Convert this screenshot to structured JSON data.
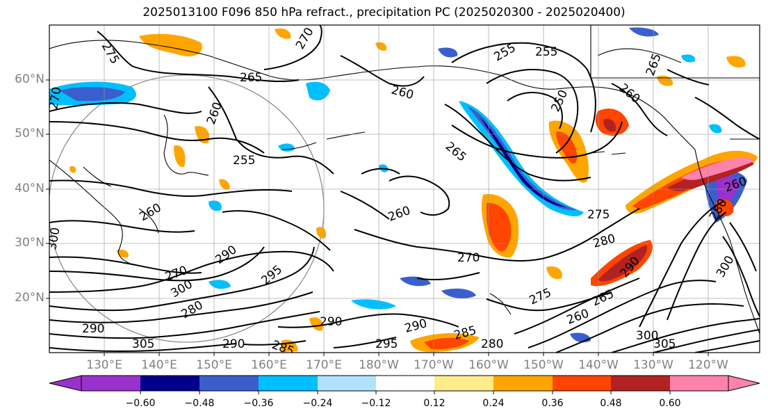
{
  "title": "2025013100 F096 850 hPa refract., precipitation PC (2025020300 - 2025020400)",
  "lat_labels": [
    "60°N",
    "50°N",
    "40°N",
    "30°N",
    "20°N"
  ],
  "lon_labels": [
    "130°E",
    "140°E",
    "150°E",
    "160°E",
    "170°E",
    "180°W",
    "170°W",
    "160°W",
    "150°W",
    "140°W",
    "130°W",
    "120°W"
  ],
  "colorbar": {
    "ticks": [
      "−0.60",
      "−0.48",
      "−0.36",
      "−0.24",
      "−0.12",
      "0.12",
      "0.24",
      "0.36",
      "0.48",
      "0.60"
    ],
    "colors": [
      "#9932cc",
      "#00008b",
      "#3a5fcd",
      "#00bfff",
      "#b0e2ff",
      "#ffffff",
      "#ffec8b",
      "#ffa500",
      "#ff4500",
      "#b22222",
      "#ff82ab"
    ]
  },
  "contour_labels": [
    {
      "text": "275"
    },
    {
      "text": "270"
    },
    {
      "text": "265"
    },
    {
      "text": "260"
    },
    {
      "text": "255"
    },
    {
      "text": "250"
    },
    {
      "text": "255"
    },
    {
      "text": "260"
    },
    {
      "text": "265"
    },
    {
      "text": "270"
    },
    {
      "text": "260"
    },
    {
      "text": "255"
    },
    {
      "text": "260"
    },
    {
      "text": "265"
    },
    {
      "text": "275"
    },
    {
      "text": "280"
    },
    {
      "text": "270"
    },
    {
      "text": "290"
    },
    {
      "text": "295"
    },
    {
      "text": "290"
    },
    {
      "text": "290"
    },
    {
      "text": "285"
    },
    {
      "text": "280"
    },
    {
      "text": "295"
    },
    {
      "text": "300"
    },
    {
      "text": "305"
    },
    {
      "text": "275"
    },
    {
      "text": "265"
    },
    {
      "text": "260"
    },
    {
      "text": "300"
    },
    {
      "text": "290"
    },
    {
      "text": "290"
    },
    {
      "text": "305"
    },
    {
      "text": "300"
    },
    {
      "text": "280"
    },
    {
      "text": "270"
    },
    {
      "text": "300"
    },
    {
      "text": "285"
    },
    {
      "text": "290"
    },
    {
      "text": "280"
    },
    {
      "text": "260"
    },
    {
      "text": "260"
    }
  ]
}
